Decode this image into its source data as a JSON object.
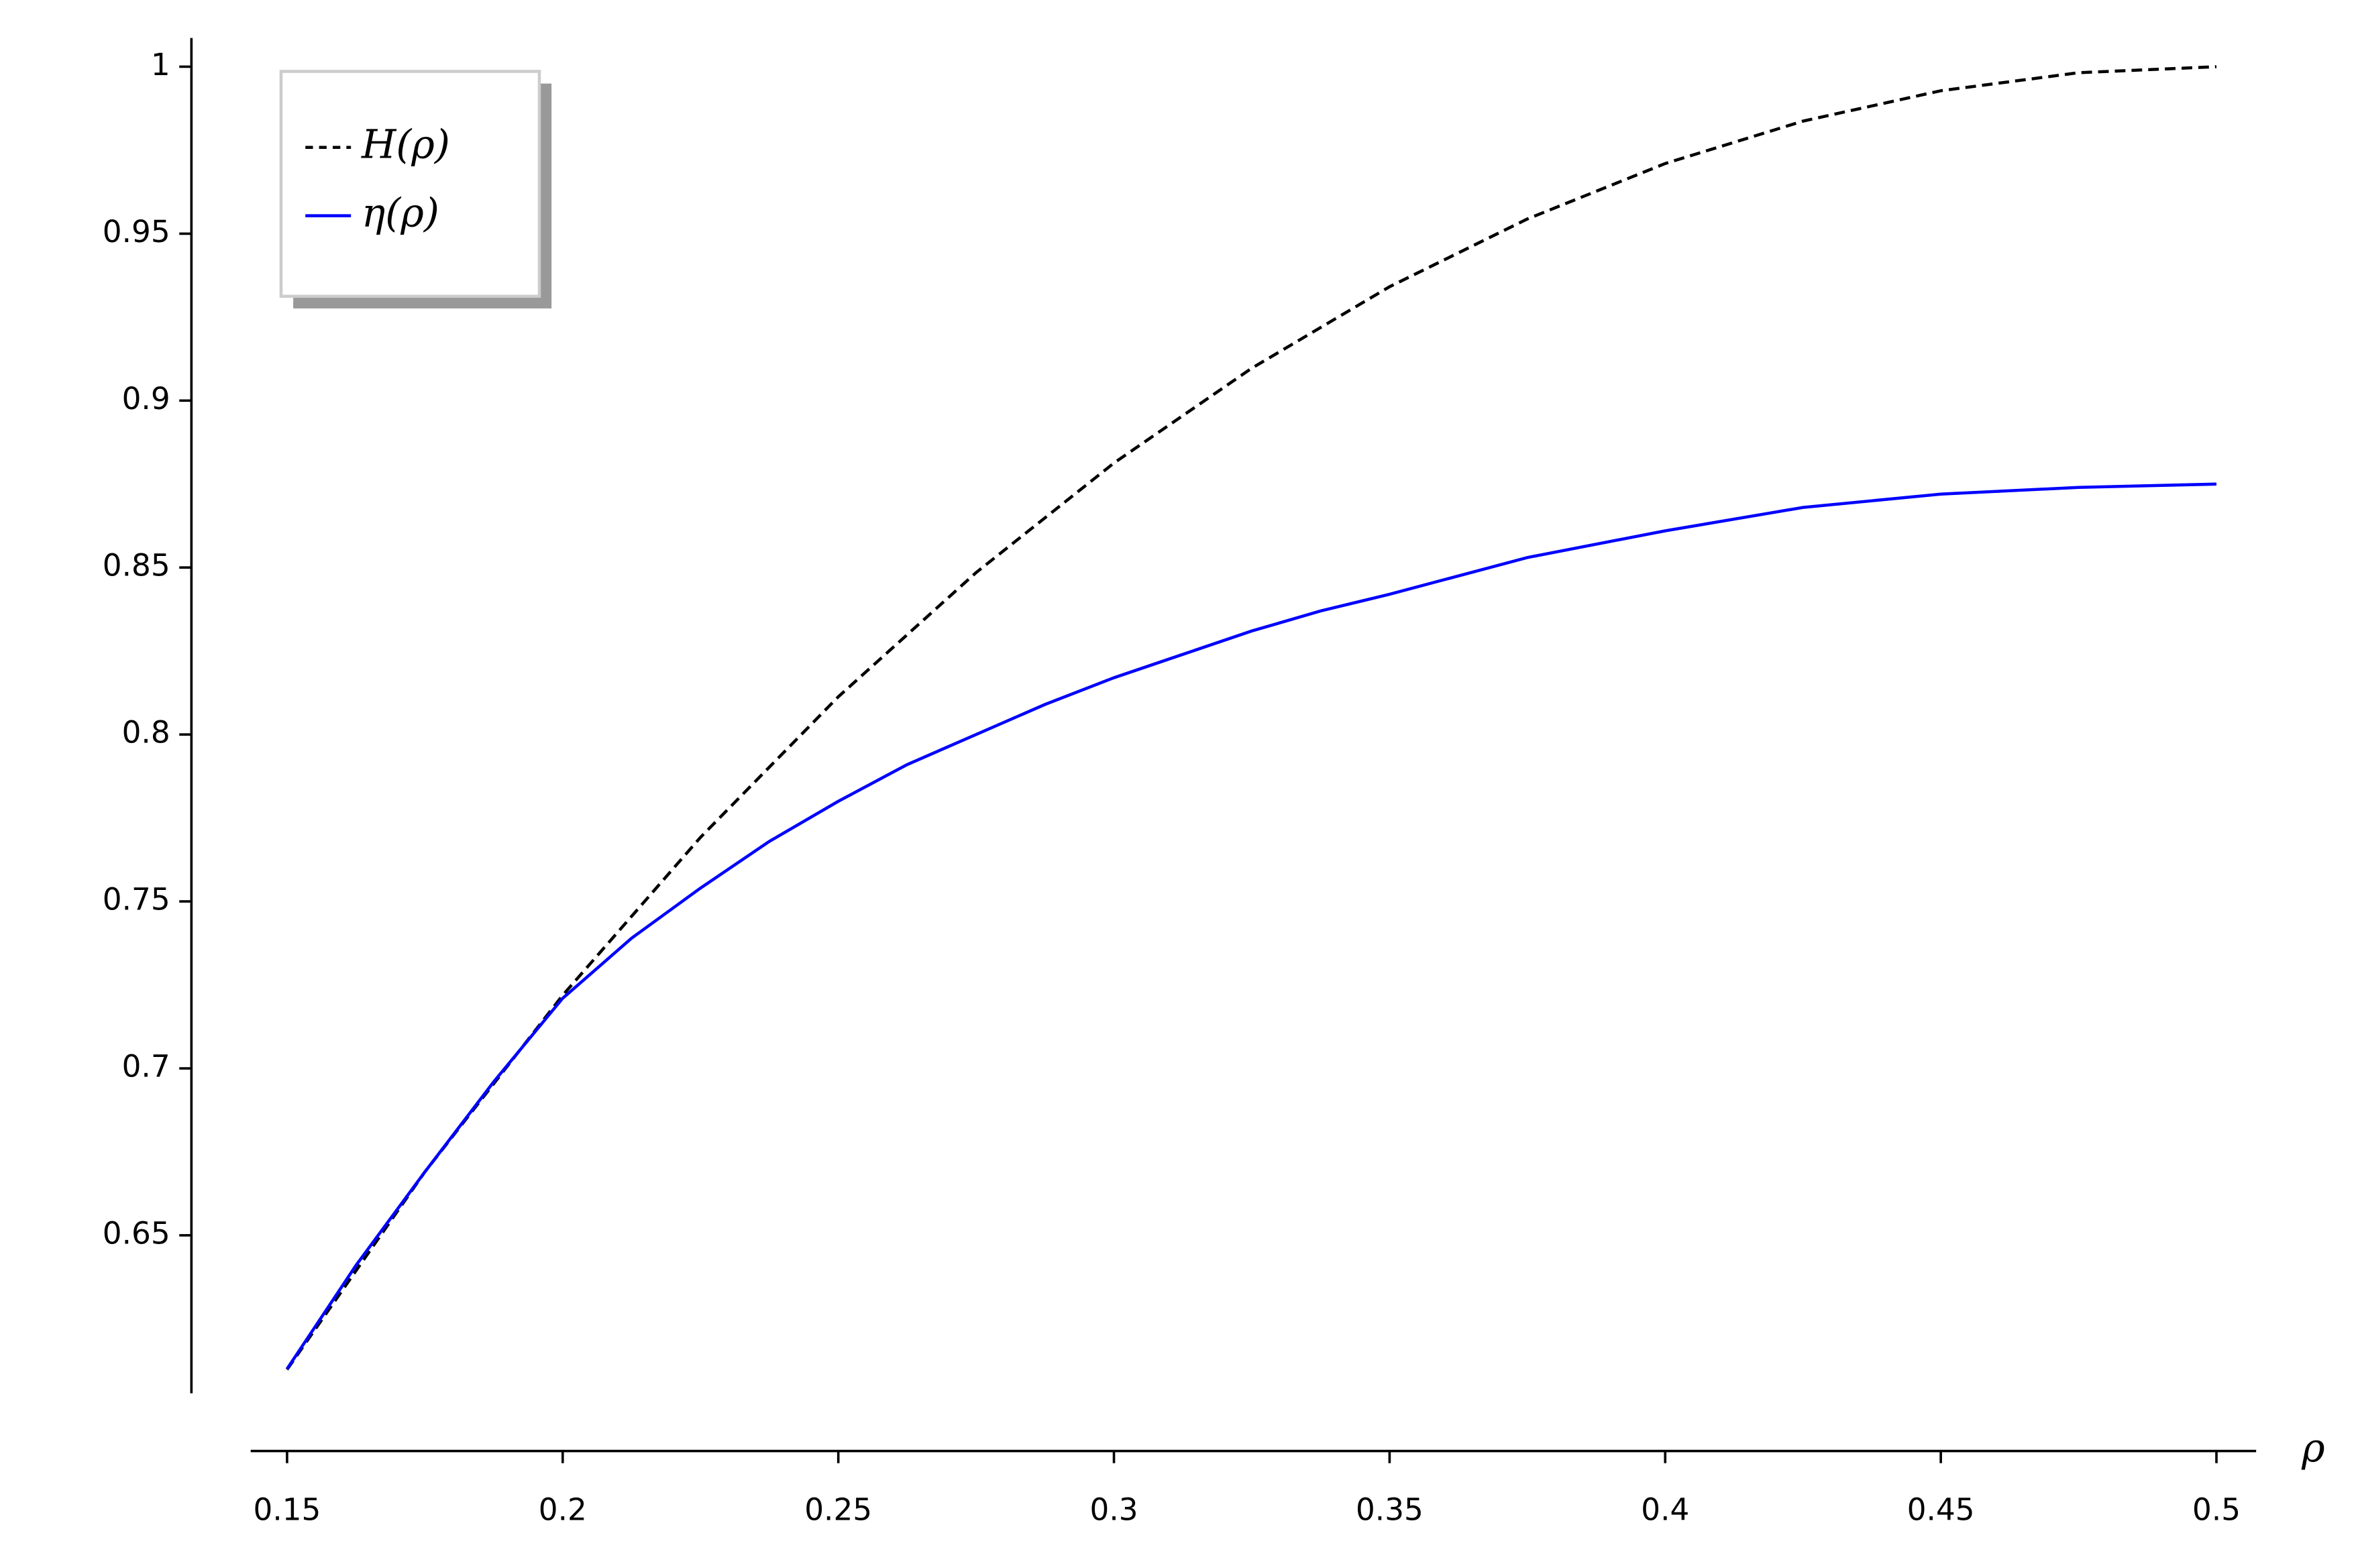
{
  "chart_data": {
    "type": "line",
    "x_label": "ρ",
    "series": [
      {
        "name": "H(ρ)",
        "color": "#000000",
        "dash": true,
        "x": [
          0.15,
          0.175,
          0.2,
          0.225,
          0.25,
          0.275,
          0.3,
          0.325,
          0.35,
          0.375,
          0.4,
          0.425,
          0.45,
          0.475,
          0.5
        ],
        "values": [
          0.6098,
          0.669,
          0.7219,
          0.7692,
          0.8113,
          0.8485,
          0.8813,
          0.9097,
          0.9341,
          0.9544,
          0.971,
          0.9837,
          0.9928,
          0.9982,
          1.0
        ]
      },
      {
        "name": "η(ρ)",
        "color": "#0000ff",
        "dash": false,
        "x": [
          0.15,
          0.1625,
          0.175,
          0.1875,
          0.2,
          0.2125,
          0.225,
          0.2375,
          0.25,
          0.2625,
          0.275,
          0.2875,
          0.3,
          0.3125,
          0.325,
          0.3375,
          0.35,
          0.375,
          0.4,
          0.425,
          0.45,
          0.475,
          0.5
        ],
        "values": [
          0.61,
          0.641,
          0.669,
          0.696,
          0.721,
          0.739,
          0.754,
          0.768,
          0.78,
          0.791,
          0.8,
          0.809,
          0.817,
          0.824,
          0.831,
          0.837,
          0.842,
          0.853,
          0.861,
          0.868,
          0.872,
          0.874,
          0.875
        ]
      }
    ],
    "xlim": [
      0.1434,
      0.5072
    ],
    "ylim": [
      0.6027,
      1.0086
    ],
    "xticks": [
      0.15,
      0.2,
      0.25,
      0.3,
      0.35,
      0.4,
      0.45,
      0.5
    ],
    "yticks": [
      0.65,
      0.7,
      0.75,
      0.8,
      0.85,
      0.9,
      0.95,
      1
    ],
    "grid": false,
    "legend": "upper left"
  }
}
